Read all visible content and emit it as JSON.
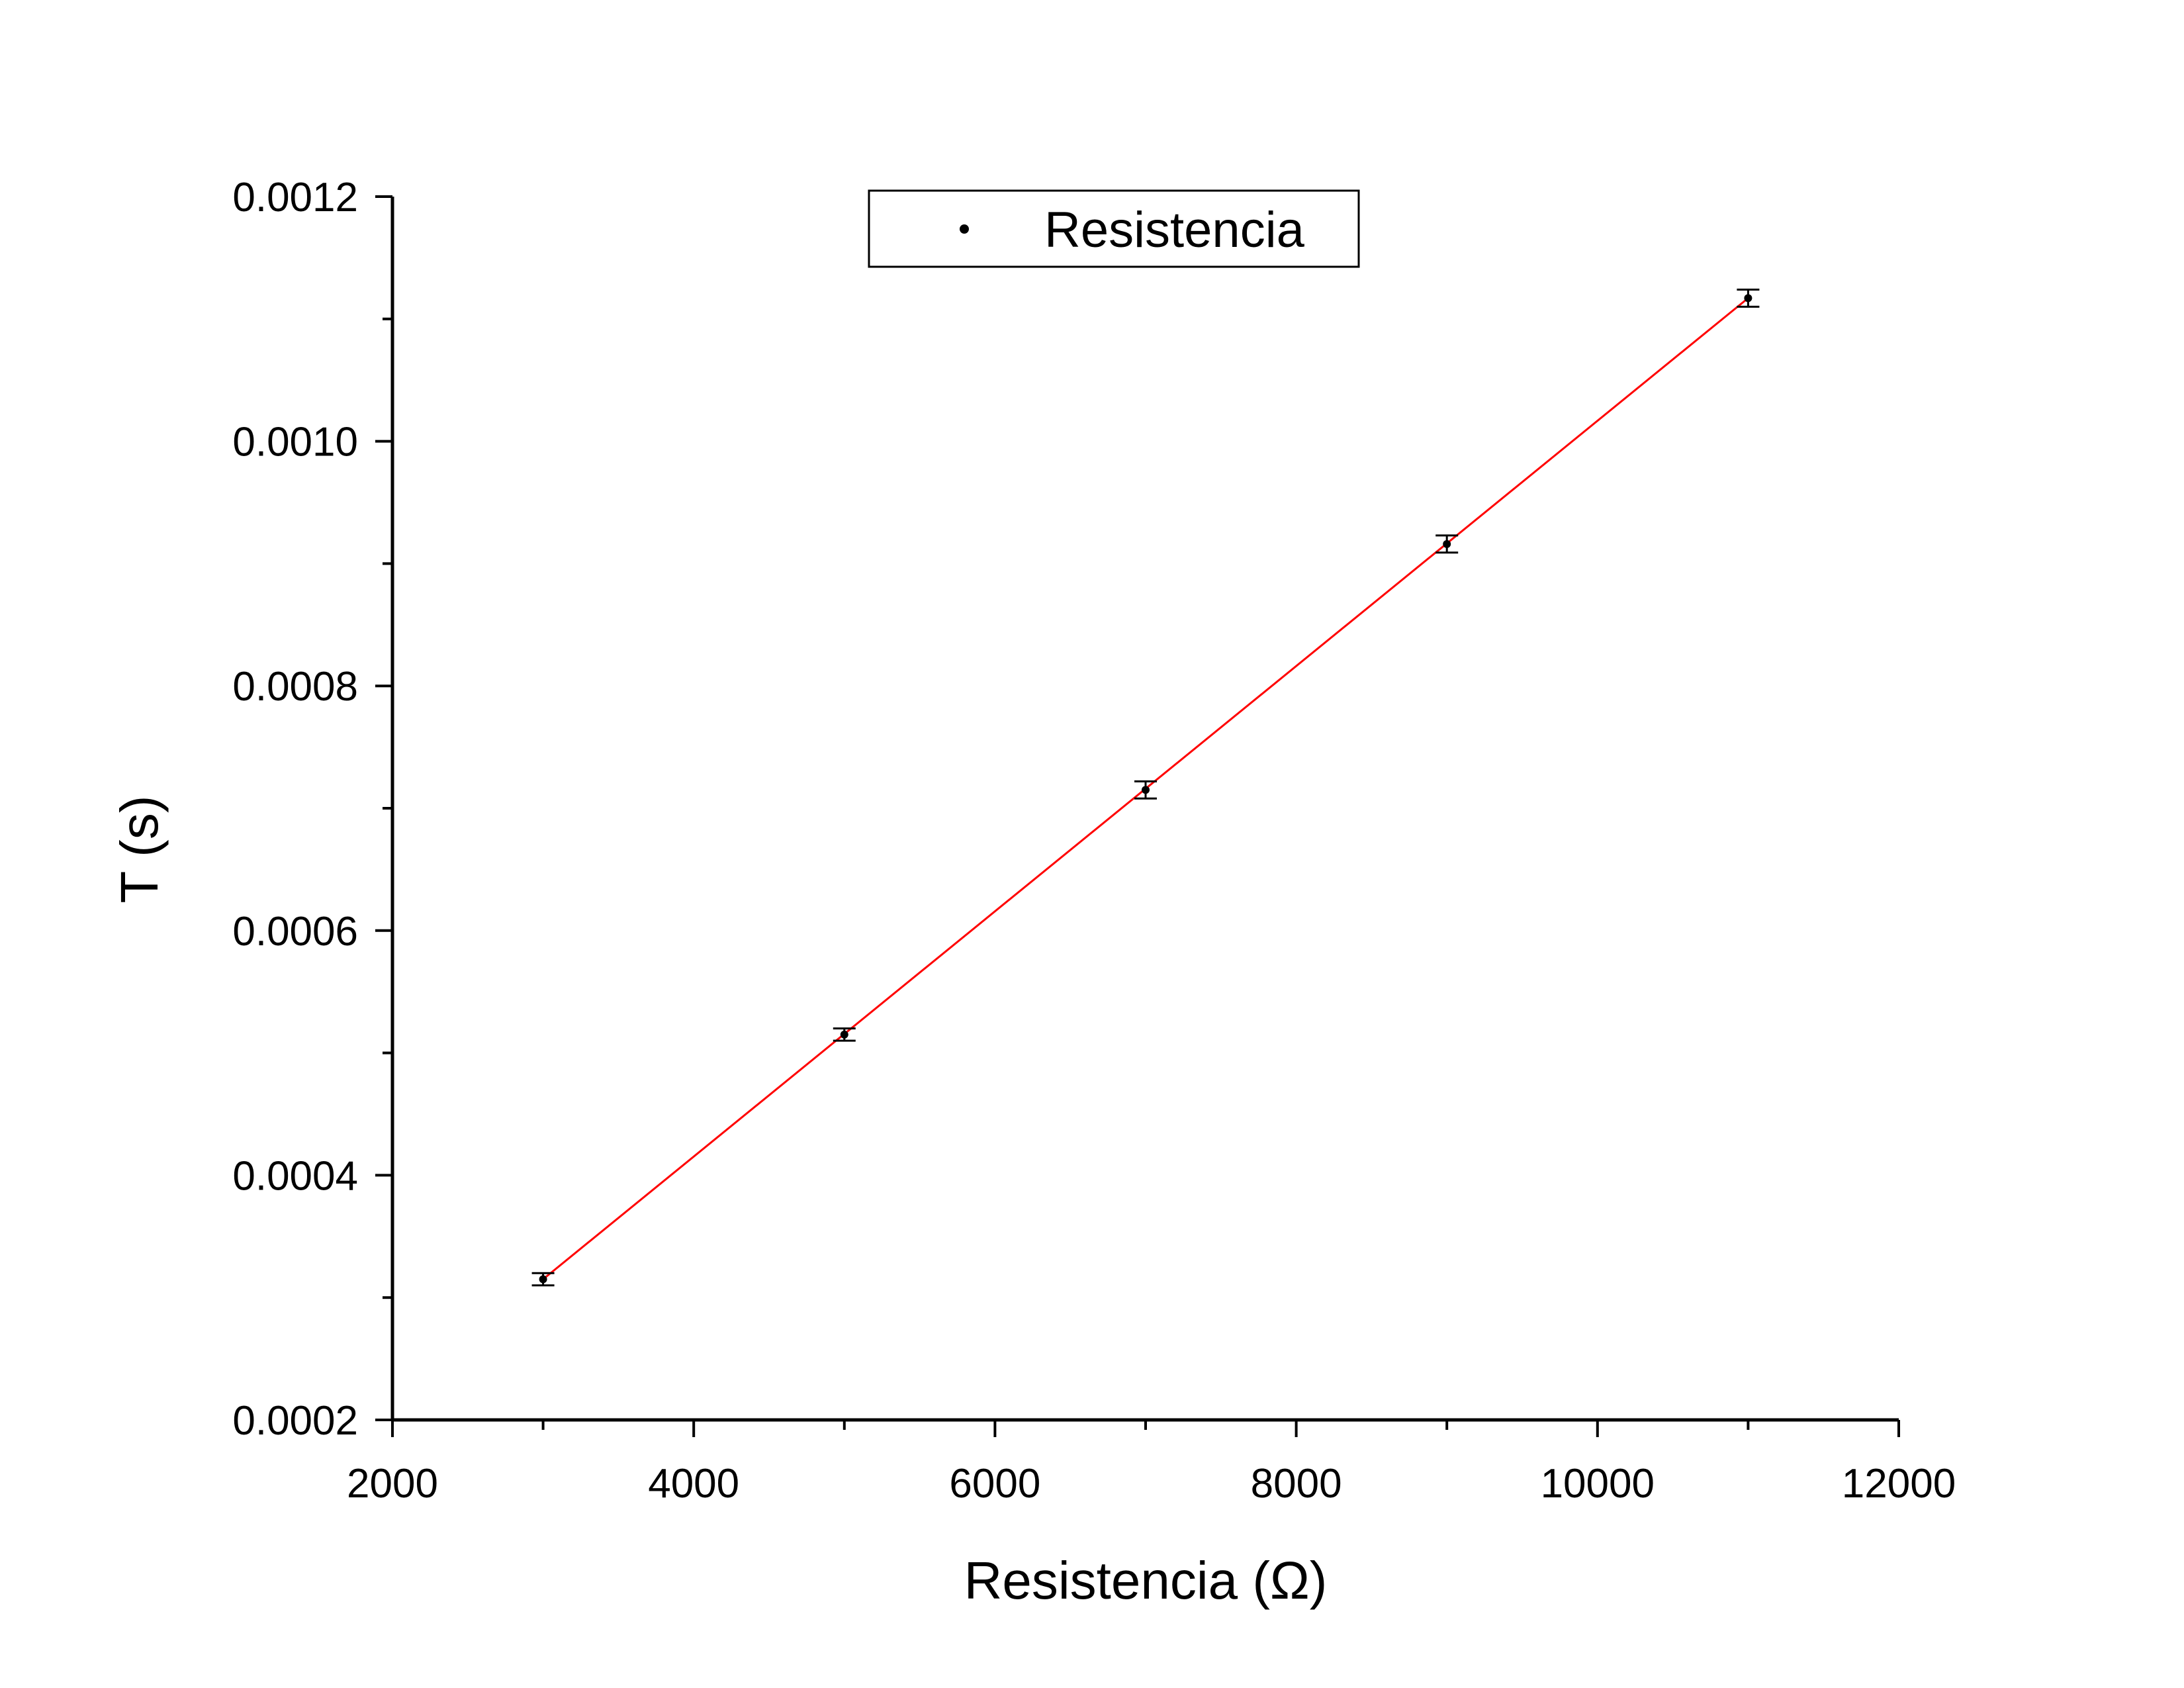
{
  "chart_data": {
    "type": "scatter",
    "xlabel": "Resistencia (Ω)",
    "ylabel": "T (s)",
    "xlim": [
      2000,
      12000
    ],
    "ylim": [
      0.0002,
      0.0012
    ],
    "x_ticks": [
      "2000",
      "4000",
      "6000",
      "8000",
      "10000",
      "12000"
    ],
    "y_ticks": [
      "0.0002",
      "0.0004",
      "0.0006",
      "0.0008",
      "0.0010",
      "0.0012"
    ],
    "grid": false,
    "legend_position": "top-center",
    "series": [
      {
        "name": "Resistencia",
        "color": "#000000",
        "points": [
          {
            "x": 3000,
            "y": 0.000315,
            "err": 5e-06
          },
          {
            "x": 5000,
            "y": 0.000515,
            "err": 5e-06
          },
          {
            "x": 7000,
            "y": 0.000715,
            "err": 7e-06
          },
          {
            "x": 9000,
            "y": 0.000916,
            "err": 7e-06
          },
          {
            "x": 11000,
            "y": 0.001117,
            "err": 7e-06
          }
        ]
      }
    ],
    "fit_line": {
      "color": "#ff0000",
      "x": [
        3000,
        11000
      ],
      "y": [
        0.000315,
        0.001117
      ]
    }
  }
}
